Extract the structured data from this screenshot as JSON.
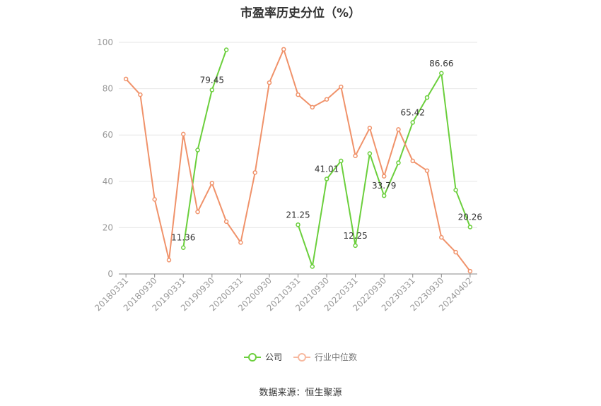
{
  "title": "市盈率历史分位（%）",
  "source_text": "数据来源：恒生聚源",
  "chart_data": {
    "type": "line",
    "title": "市盈率历史分位（%）",
    "ylim": [
      0,
      100
    ],
    "y_ticks": [
      "0",
      "20",
      "40",
      "60",
      "80",
      "100"
    ],
    "grid": true,
    "legend_placement": "bottom",
    "x_tick_labels": [
      "20180331",
      "20180930",
      "20190331",
      "20190930",
      "20200331",
      "20200930",
      "20210331",
      "20210930",
      "20220331",
      "20220930",
      "20230331",
      "20230930",
      "20240402"
    ],
    "x": [
      "20180331",
      "20180630",
      "20180930",
      "20181231",
      "20190331",
      "20190630",
      "20190930",
      "20191231",
      "20200331",
      "20200630",
      "20200930",
      "20201231",
      "20210331",
      "20210630",
      "20210930",
      "20211231",
      "20220331",
      "20220630",
      "20220930",
      "20221231",
      "20230331",
      "20230630",
      "20230930",
      "20231231",
      "20240402"
    ],
    "series": [
      {
        "name": "公司",
        "color": "#6bcf3c",
        "values": [
          null,
          null,
          null,
          null,
          11.36,
          53.5,
          79.45,
          96.8,
          null,
          null,
          null,
          null,
          21.25,
          3.2,
          41.01,
          48.8,
          12.25,
          52.0,
          33.79,
          48.0,
          65.42,
          76.2,
          86.66,
          36.2,
          20.26
        ],
        "labels": {
          "4": "11.36",
          "6": "79.45",
          "12": "21.25",
          "14": "41.01",
          "16": "12.25",
          "18": "33.79",
          "20": "65.42",
          "22": "86.66",
          "24": "20.26"
        }
      },
      {
        "name": "行业中位数",
        "color": "#f0926a",
        "values": [
          84.2,
          77.4,
          32.2,
          6.0,
          60.4,
          26.8,
          39.2,
          22.6,
          13.6,
          43.8,
          82.6,
          97.0,
          77.4,
          72.0,
          75.4,
          80.8,
          51.0,
          63.0,
          42.2,
          62.4,
          48.8,
          44.6,
          15.8,
          9.4,
          1.2
        ]
      }
    ]
  }
}
